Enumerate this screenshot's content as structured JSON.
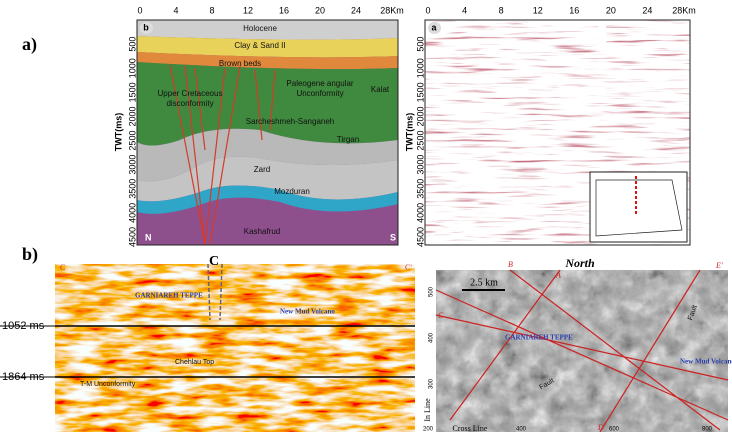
{
  "figure": {
    "panel_a_label": "a)",
    "panel_b_label": "b)",
    "interpreted_section": {
      "letter": "b",
      "x_ticks": [
        "0",
        "4",
        "8",
        "12",
        "16",
        "20",
        "24",
        "28Km"
      ],
      "y_label": "TWT(ms)",
      "y_ticks": [
        "500",
        "1000",
        "1500",
        "2000",
        "2500",
        "3000",
        "3500",
        "4000",
        "4500"
      ],
      "labels": [
        "Holocene",
        "Clay & Sand II",
        "Brown beds",
        "Upper Cretaceous",
        "disconformity",
        "Paleogene angular",
        "Unconformity",
        "Kalat",
        "Sarcheshmeh-Sanganeh",
        "Tirgan",
        "Zard",
        "Mozduran",
        "Kashafrud"
      ],
      "left_end": "N",
      "right_end": "S"
    },
    "seismic_section": {
      "letter": "a",
      "x_ticks": [
        "0",
        "4",
        "8",
        "12",
        "16",
        "20",
        "24",
        "28Km"
      ],
      "y_label": "TWT(ms)",
      "y_ticks": [
        "500",
        "1000",
        "1500",
        "2000",
        "2500",
        "3000",
        "3500",
        "4000",
        "4500"
      ]
    },
    "seismic_line": {
      "ends": [
        "C",
        "C",
        "C'"
      ],
      "labels": [
        "GARNIAREH TEPPE",
        "New Mud Volcano",
        "Chehlau Top",
        "T-M Unconformity"
      ],
      "horizons": [
        "1052 ms",
        "1864 ms"
      ]
    },
    "time_slice": {
      "title": "North",
      "scale": "2.5 km",
      "line_ends": [
        "B",
        "A",
        "E'",
        "C",
        "D"
      ],
      "labels": [
        "GARNIAREH TEPPE",
        "New Mud Volcano",
        "Fault",
        "Fault"
      ],
      "y_label": "In Line",
      "x_label": "Cross Line",
      "y_ticks": [
        "500",
        "400",
        "300"
      ],
      "x_ticks": [
        "200",
        "400",
        "600",
        "800"
      ]
    }
  }
}
